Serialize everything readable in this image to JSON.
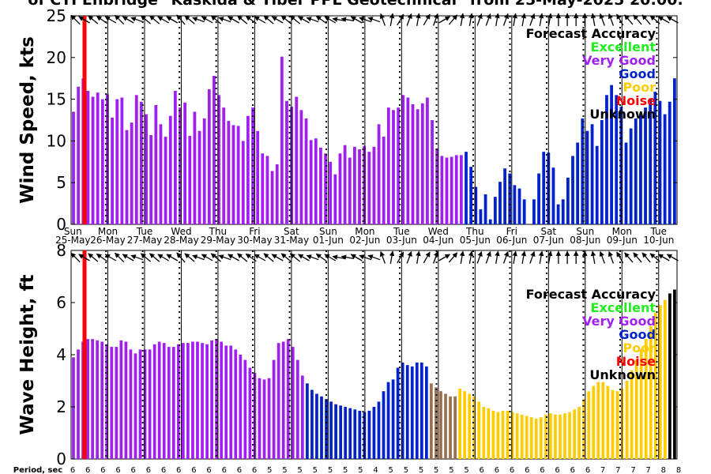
{
  "chart_data": {
    "type": "bar",
    "title": "of CTI Enbridge \"Kaskida & Tiber PPL Geotechnical\" from 25-May-2025 20:00.",
    "period_label": "Period, sec",
    "days": [
      {
        "day": "Sun",
        "date": "25-May"
      },
      {
        "day": "Mon",
        "date": "26-May"
      },
      {
        "day": "Tue",
        "date": "27-May"
      },
      {
        "day": "Wed",
        "date": "28-May"
      },
      {
        "day": "Thu",
        "date": "29-May"
      },
      {
        "day": "Fri",
        "date": "30-May"
      },
      {
        "day": "Sat",
        "date": "31-May"
      },
      {
        "day": "Sun",
        "date": "01-Jun"
      },
      {
        "day": "Mon",
        "date": "02-Jun"
      },
      {
        "day": "Tue",
        "date": "03-Jun"
      },
      {
        "day": "Wed",
        "date": "04-Jun"
      },
      {
        "day": "Thu",
        "date": "05-Jun"
      },
      {
        "day": "Fri",
        "date": "06-Jun"
      },
      {
        "day": "Sat",
        "date": "07-Jun"
      },
      {
        "day": "Sun",
        "date": "08-Jun"
      },
      {
        "day": "Mon",
        "date": "09-Jun"
      },
      {
        "day": "Tue",
        "date": "10-Jun"
      }
    ],
    "legend": {
      "title": "Forecast Accuracy",
      "entries": [
        {
          "label": "Excellent",
          "color": "#22ee22"
        },
        {
          "label": "Very Good",
          "color": "#a020f0"
        },
        {
          "label": "Good",
          "color": "#0022cc"
        },
        {
          "label": "Poor",
          "color": "#ffcc00"
        },
        {
          "label": "Noise",
          "color": "#ff0000"
        },
        {
          "label": "Unknown",
          "color": "#000000"
        }
      ]
    },
    "wind": {
      "ylabel": "Wind Speed, kts",
      "ylim": [
        0,
        25
      ],
      "yticks": [
        0,
        5,
        10,
        15,
        20,
        25
      ],
      "values": [
        13.5,
        16.5,
        17.5,
        16,
        15.3,
        15.8,
        15,
        15.6,
        12.8,
        15,
        15.2,
        11.3,
        12.2,
        15.5,
        14.7,
        13.2,
        10.7,
        14.3,
        12,
        10.5,
        13,
        16,
        14,
        14.6,
        10.6,
        13.5,
        11.2,
        12.7,
        16.2,
        17.8,
        15.5,
        14,
        12.4,
        11.9,
        11.8,
        10,
        13,
        14,
        11.2,
        8.5,
        8.2,
        6.4,
        7.2,
        20.1,
        14.8,
        14.1,
        15.3,
        13.7,
        12.7,
        10.1,
        10.3,
        9.2,
        8.5,
        7.5,
        6,
        8.5,
        9.5,
        8,
        9.3,
        9,
        9.4,
        8.7,
        9.3,
        12,
        10.5,
        14,
        13.7,
        14,
        15.5,
        15.2,
        14.4,
        13.8,
        14.5,
        15.2,
        12.5,
        9.1,
        8.2,
        8,
        8.1,
        8.3,
        8.3,
        8.7,
        6.9,
        4.5,
        1.8,
        3.6,
        0.6,
        3.3,
        5.1,
        6.7,
        6.1,
        4.7,
        4.3,
        3,
        0,
        3,
        6.1,
        8.7,
        8.6,
        6.8,
        2.4,
        3,
        5.6,
        8.2,
        9.8,
        12.7,
        11.2,
        12,
        9.4,
        12.5,
        15.5,
        16.7,
        15.5,
        14.1,
        9.8,
        11.5,
        12.7,
        13.2,
        14,
        15,
        15.9,
        14.8,
        13.2,
        14.7,
        17.5
      ],
      "quality": [
        "V",
        "V",
        "V",
        "V",
        "V",
        "V",
        "V",
        "V",
        "V",
        "V",
        "V",
        "V",
        "V",
        "V",
        "V",
        "V",
        "V",
        "V",
        "V",
        "V",
        "V",
        "V",
        "V",
        "V",
        "V",
        "V",
        "V",
        "V",
        "V",
        "V",
        "V",
        "V",
        "V",
        "V",
        "V",
        "V",
        "V",
        "V",
        "V",
        "V",
        "V",
        "V",
        "V",
        "V",
        "V",
        "V",
        "V",
        "V",
        "V",
        "V",
        "V",
        "V",
        "V",
        "V",
        "V",
        "V",
        "V",
        "V",
        "V",
        "V",
        "V",
        "V",
        "V",
        "V",
        "V",
        "V",
        "V",
        "V",
        "V",
        "V",
        "V",
        "V",
        "V",
        "V",
        "V",
        "V",
        "V",
        "V",
        "V",
        "V",
        "V",
        "G",
        "G",
        "G",
        "G",
        "G",
        "G",
        "G",
        "G",
        "G",
        "G",
        "G",
        "G",
        "G",
        "G",
        "G",
        "G",
        "G",
        "G",
        "G",
        "G",
        "G",
        "G",
        "G",
        "G",
        "G",
        "G",
        "G",
        "G",
        "G",
        "G",
        "G",
        "G",
        "G",
        "G",
        "G",
        "G",
        "G",
        "G",
        "G",
        "G",
        "G",
        "G",
        "G",
        "G"
      ]
    },
    "wave": {
      "ylabel": "Wave Height, ft",
      "ylim": [
        0,
        8
      ],
      "yticks": [
        0,
        2,
        4,
        6,
        8
      ],
      "values": [
        3.9,
        4.2,
        4.5,
        4.6,
        4.6,
        4.55,
        4.5,
        4.4,
        4.3,
        4.3,
        4.55,
        4.5,
        4.2,
        4.05,
        4.2,
        4.2,
        4.2,
        4.4,
        4.5,
        4.45,
        4.3,
        4.3,
        4.4,
        4.45,
        4.45,
        4.5,
        4.5,
        4.45,
        4.4,
        4.55,
        4.6,
        4.5,
        4.35,
        4.35,
        4.2,
        4.0,
        3.8,
        3.5,
        3.3,
        3.1,
        3.05,
        3.1,
        3.8,
        4.45,
        4.5,
        4.6,
        4.3,
        3.8,
        3.2,
        2.9,
        2.65,
        2.5,
        2.4,
        2.3,
        2.2,
        2.1,
        2.05,
        2.0,
        1.95,
        1.9,
        1.85,
        1.8,
        1.85,
        2.0,
        2.2,
        2.6,
        2.95,
        3.05,
        3.5,
        3.7,
        3.6,
        3.55,
        3.7,
        3.7,
        3.55,
        2.9,
        2.75,
        2.6,
        2.5,
        2.4,
        2.4,
        2.7,
        2.6,
        2.5,
        2.4,
        2.2,
        2.0,
        1.95,
        1.85,
        1.8,
        1.85,
        1.85,
        1.8,
        1.75,
        1.7,
        1.65,
        1.6,
        1.55,
        1.6,
        1.7,
        1.75,
        1.7,
        1.7,
        1.75,
        1.8,
        1.9,
        2.0,
        2.3,
        2.6,
        2.8,
        2.95,
        2.95,
        2.8,
        2.65,
        2.6,
        2.7,
        3.0,
        3.4,
        3.8,
        4.2,
        4.6,
        5.1,
        5.6,
        5.9,
        6.1,
        6.35,
        6.5
      ],
      "quality": [
        "V",
        "V",
        "V",
        "V",
        "V",
        "V",
        "V",
        "V",
        "V",
        "V",
        "V",
        "V",
        "V",
        "V",
        "V",
        "V",
        "V",
        "V",
        "V",
        "V",
        "V",
        "V",
        "V",
        "V",
        "V",
        "V",
        "V",
        "V",
        "V",
        "V",
        "V",
        "V",
        "V",
        "V",
        "V",
        "V",
        "V",
        "V",
        "V",
        "V",
        "V",
        "V",
        "V",
        "V",
        "V",
        "V",
        "V",
        "V",
        "V",
        "G",
        "G",
        "G",
        "G",
        "G",
        "G",
        "G",
        "G",
        "G",
        "G",
        "G",
        "G",
        "G",
        "G",
        "G",
        "G",
        "G",
        "G",
        "G",
        "G",
        "G",
        "G",
        "G",
        "G",
        "G",
        "G",
        "T",
        "T",
        "T",
        "T",
        "T",
        "T",
        "P",
        "P",
        "P",
        "P",
        "P",
        "P",
        "P",
        "P",
        "P",
        "P",
        "P",
        "P",
        "P",
        "P",
        "P",
        "P",
        "P",
        "P",
        "P",
        "P",
        "P",
        "P",
        "P",
        "P",
        "P",
        "P",
        "P",
        "P",
        "P",
        "P",
        "P",
        "P",
        "P",
        "P",
        "P",
        "P",
        "P",
        "P",
        "P",
        "P",
        "P",
        "P",
        "P",
        "P"
      ]
    },
    "wind_dir": [
      135,
      150,
      140,
      145,
      150,
      135,
      150,
      160,
      140,
      140,
      150,
      150,
      130,
      140,
      160,
      150,
      140,
      160,
      150,
      140,
      145,
      150,
      140,
      150,
      140,
      140,
      150,
      160,
      145,
      150,
      170,
      170,
      150,
      160,
      160,
      110,
      80,
      60,
      70,
      80,
      60,
      70,
      30,
      50,
      80,
      80,
      70,
      70,
      80,
      70,
      80,
      80,
      70,
      80,
      80,
      90,
      90,
      90,
      90,
      100,
      110,
      110,
      120,
      130,
      130,
      130,
      140,
      150,
      150
    ],
    "wave_dir": [
      135,
      150,
      140,
      145,
      150,
      135,
      150,
      160,
      140,
      140,
      150,
      150,
      130,
      140,
      160,
      150,
      140,
      160,
      150,
      140,
      145,
      150,
      140,
      150,
      140,
      140,
      150,
      160,
      145,
      150,
      170,
      170,
      150,
      160,
      160,
      110,
      80,
      60,
      70,
      80,
      60,
      70,
      30,
      50,
      80,
      80,
      70,
      70,
      80,
      70,
      80,
      80,
      70,
      80,
      80,
      90,
      90,
      90,
      90,
      100,
      110,
      110,
      120,
      130,
      130,
      130,
      140,
      150,
      150
    ],
    "periods": [
      "6",
      "6",
      "6",
      "6",
      "6",
      "6",
      "6",
      "6",
      "6",
      "6",
      "6",
      "6",
      "6",
      "5",
      "5",
      "5",
      "5",
      "5",
      "5",
      "5",
      "4",
      "5",
      "5",
      "5",
      "5",
      "5",
      "5",
      "6",
      "6",
      "6",
      "6",
      "6",
      "6",
      "6",
      "6",
      "7",
      "7",
      "7",
      "7",
      "8",
      "8"
    ]
  }
}
